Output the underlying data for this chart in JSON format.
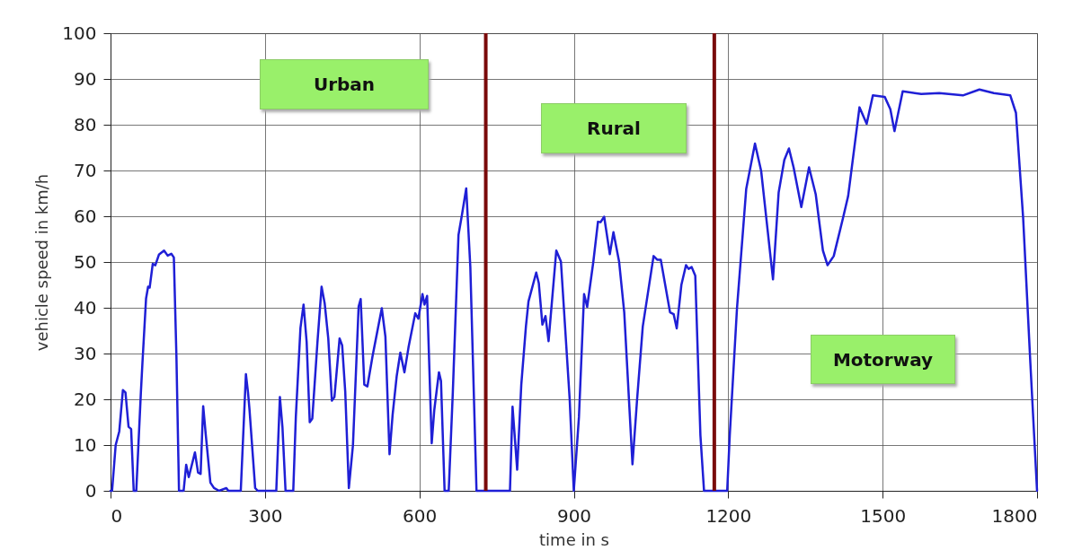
{
  "chart_data": {
    "type": "line",
    "xlabel": "time in s",
    "ylabel": "vehicle speed in km/h",
    "xlim": [
      0,
      1800
    ],
    "xticks": [
      0,
      300,
      600,
      900,
      1200,
      1500,
      1800
    ],
    "ylim": [
      0,
      100
    ],
    "yticks": [
      0,
      10,
      20,
      30,
      40,
      50,
      60,
      70,
      80,
      90,
      100
    ],
    "grid": true,
    "annotations": [
      "Urban",
      "Rural",
      "Motorway"
    ],
    "ref_lines": [
      {
        "axis": "x",
        "value": 729,
        "color": "#7a0a0a"
      },
      {
        "axis": "x",
        "value": 1173,
        "color": "#7a0a0a"
      }
    ],
    "series": [
      {
        "color": "#1f1fd6",
        "x": [
          0,
          3,
          10,
          17,
          24,
          29,
          35,
          40,
          45,
          50,
          59,
          62,
          69,
          73,
          76,
          82,
          87,
          94,
          104,
          111,
          118,
          123,
          128,
          133,
          142,
          147,
          152,
          164,
          170,
          175,
          180,
          185,
          194,
          201,
          211,
          225,
          229,
          253,
          263,
          267,
          270,
          281,
          286,
          322,
          329,
          334,
          340,
          355,
          360,
          369,
          375,
          381,
          387,
          392,
          402,
          410,
          416,
          423,
          430,
          435,
          445,
          450,
          456,
          463,
          471,
          482,
          486,
          493,
          499,
          509,
          527,
          534,
          542,
          548,
          556,
          563,
          571,
          579,
          592,
          598,
          606,
          610,
          615,
          624,
          629,
          638,
          642,
          649,
          657,
          665,
          676,
          683,
          691,
          699,
          711,
          729,
          776,
          781,
          790,
          798,
          807,
          812,
          827,
          832,
          839,
          845,
          851,
          866,
          875,
          892,
          900,
          910,
          920,
          926,
          938,
          947,
          952,
          959,
          970,
          977,
          988,
          998,
          1014,
          1023,
          1034,
          1055,
          1062,
          1069,
          1087,
          1094,
          1100,
          1109,
          1118,
          1123,
          1129,
          1136,
          1146,
          1153,
          1198,
          1203,
          1217,
          1235,
          1252,
          1264,
          1287,
          1298,
          1309,
          1318,
          1327,
          1342,
          1357,
          1370,
          1384,
          1393,
          1405,
          1423,
          1433,
          1455,
          1469,
          1481,
          1504,
          1515,
          1523,
          1539,
          1575,
          1610,
          1656,
          1688,
          1716,
          1748,
          1759,
          1773,
          1787,
          1800
        ],
        "values": [
          0,
          0,
          10,
          13,
          22,
          21.5,
          14,
          13.5,
          0,
          0,
          21.6,
          28,
          42,
          44.6,
          44.4,
          49.6,
          49.3,
          51.6,
          52.5,
          51.4,
          51.8,
          51,
          29.4,
          0,
          0,
          5.7,
          3,
          8.4,
          4,
          3.7,
          18.5,
          12.3,
          1.8,
          0.6,
          0,
          0.6,
          0,
          0,
          25.5,
          21.6,
          17.7,
          0.6,
          0,
          0,
          20.5,
          13.9,
          0,
          0,
          16.2,
          35.6,
          40.7,
          32.5,
          15,
          15.8,
          32.5,
          44.6,
          41,
          33.3,
          19.7,
          20.5,
          33.3,
          31.8,
          21.6,
          0.6,
          10,
          40.3,
          41.9,
          23.2,
          22.8,
          29.4,
          39.9,
          33.7,
          8,
          16.6,
          25.1,
          30.2,
          25.9,
          31.4,
          38.8,
          37.6,
          43,
          40.7,
          42.6,
          10.4,
          17.7,
          25.9,
          24,
          0,
          0,
          21.6,
          55.9,
          60.5,
          66.1,
          48.9,
          0,
          0,
          0,
          18.4,
          4.6,
          23.2,
          35.9,
          41.4,
          47.7,
          45.4,
          36.3,
          38.2,
          32.7,
          52.5,
          50.1,
          20,
          0,
          16.1,
          43,
          40.2,
          50.1,
          58.8,
          58.7,
          59.9,
          51.7,
          56.5,
          50.1,
          39,
          5.8,
          20,
          35.9,
          51.3,
          50.5,
          50.5,
          39,
          38.6,
          35.5,
          45,
          49.3,
          48.5,
          48.9,
          47,
          12.1,
          0,
          0,
          12.1,
          39.8,
          66,
          75.9,
          69.9,
          46.2,
          65.2,
          72.3,
          74.8,
          70.7,
          62,
          70.7,
          64.8,
          52.5,
          49.3,
          51.3,
          59.6,
          64.4,
          83.8,
          80.2,
          86.4,
          86.1,
          83.4,
          78.6,
          87.3,
          86.7,
          86.9,
          86.4,
          87.7,
          86.9,
          86.4,
          82.6,
          59.6,
          27.9,
          0
        ]
      }
    ]
  }
}
